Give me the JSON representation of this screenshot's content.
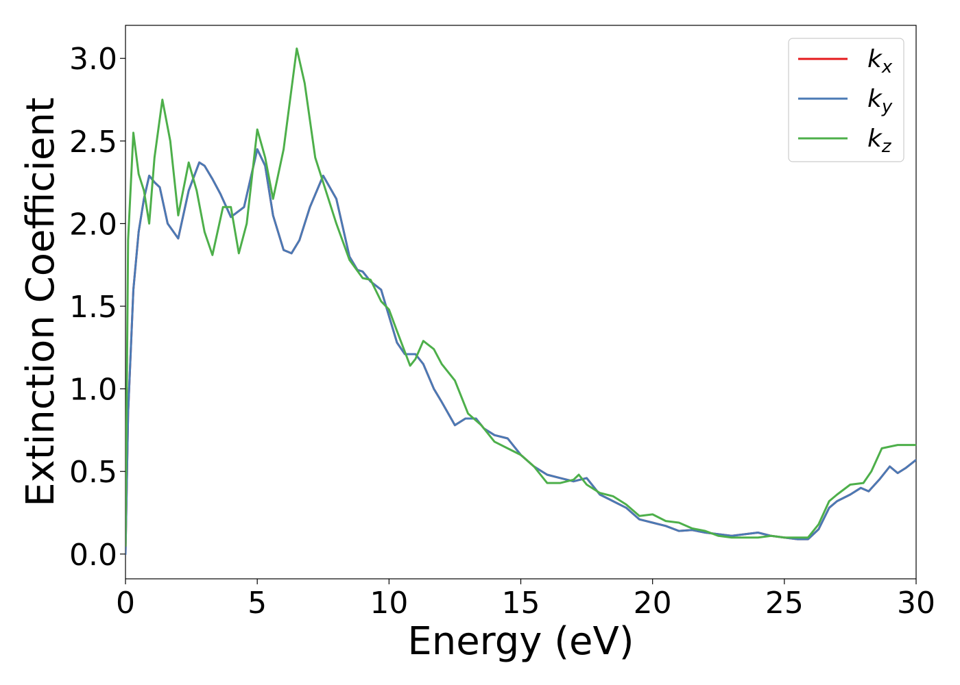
{
  "chart_data": {
    "type": "line",
    "xlabel": "Energy (eV)",
    "ylabel": "Extinction Coefficient",
    "xlim": [
      0,
      30
    ],
    "ylim": [
      -0.15,
      3.2
    ],
    "xticks": [
      0,
      5,
      10,
      15,
      20,
      25,
      30
    ],
    "xtick_labels": [
      "0",
      "5",
      "10",
      "15",
      "20",
      "25",
      "30"
    ],
    "yticks": [
      0.0,
      0.5,
      1.0,
      1.5,
      2.0,
      2.5,
      3.0
    ],
    "ytick_labels": [
      "0.0",
      "0.5",
      "1.0",
      "1.5",
      "2.0",
      "2.5",
      "3.0"
    ],
    "grid": false,
    "legend_position": "top-right",
    "series": [
      {
        "name": "k_x",
        "legend_base": "k",
        "legend_sub": "x",
        "color": "#e41a1c",
        "x": [
          0,
          0.1,
          0.3,
          0.5,
          0.7,
          0.9,
          1.1,
          1.3,
          1.6,
          2.0,
          2.4,
          2.8,
          3.0,
          3.3,
          3.6,
          4.0,
          4.5,
          5.0,
          5.3,
          5.6,
          6.0,
          6.3,
          6.6,
          7.0,
          7.5,
          8.0,
          8.5,
          8.8,
          9.0,
          9.3,
          9.7,
          10.0,
          10.3,
          10.6,
          11.0,
          11.3,
          11.7,
          12.0,
          12.5,
          12.9,
          13.3,
          13.6,
          14.0,
          14.5,
          15.0,
          15.5,
          16.0,
          16.5,
          17.0,
          17.5,
          18.0,
          18.5,
          19.0,
          19.5,
          20.0,
          20.5,
          21.0,
          21.5,
          22.0,
          22.5,
          23.0,
          23.5,
          24.0,
          24.5,
          25.0,
          25.5,
          25.9,
          26.3,
          26.7,
          27.0,
          27.5,
          27.9,
          28.2,
          28.6,
          29.0,
          29.3,
          29.6,
          30.0
        ],
        "y": [
          0.0,
          0.85,
          1.6,
          1.95,
          2.15,
          2.29,
          2.25,
          2.22,
          2.0,
          1.91,
          2.2,
          2.37,
          2.35,
          2.27,
          2.18,
          2.04,
          2.1,
          2.45,
          2.35,
          2.05,
          1.84,
          1.82,
          1.9,
          2.1,
          2.29,
          2.15,
          1.8,
          1.72,
          1.71,
          1.65,
          1.6,
          1.44,
          1.28,
          1.21,
          1.21,
          1.15,
          1.0,
          0.92,
          0.78,
          0.82,
          0.82,
          0.76,
          0.72,
          0.7,
          0.6,
          0.53,
          0.48,
          0.46,
          0.44,
          0.46,
          0.36,
          0.32,
          0.28,
          0.21,
          0.19,
          0.17,
          0.14,
          0.145,
          0.13,
          0.12,
          0.11,
          0.12,
          0.13,
          0.11,
          0.1,
          0.09,
          0.09,
          0.15,
          0.28,
          0.32,
          0.36,
          0.4,
          0.38,
          0.45,
          0.53,
          0.49,
          0.52,
          0.57
        ]
      },
      {
        "name": "k_y",
        "legend_base": "k",
        "legend_sub": "y",
        "color": "#4a7ab5",
        "x": [
          0,
          0.1,
          0.3,
          0.5,
          0.7,
          0.9,
          1.1,
          1.3,
          1.6,
          2.0,
          2.4,
          2.8,
          3.0,
          3.3,
          3.6,
          4.0,
          4.5,
          5.0,
          5.3,
          5.6,
          6.0,
          6.3,
          6.6,
          7.0,
          7.5,
          8.0,
          8.5,
          8.8,
          9.0,
          9.3,
          9.7,
          10.0,
          10.3,
          10.6,
          11.0,
          11.3,
          11.7,
          12.0,
          12.5,
          12.9,
          13.3,
          13.6,
          14.0,
          14.5,
          15.0,
          15.5,
          16.0,
          16.5,
          17.0,
          17.5,
          18.0,
          18.5,
          19.0,
          19.5,
          20.0,
          20.5,
          21.0,
          21.5,
          22.0,
          22.5,
          23.0,
          23.5,
          24.0,
          24.5,
          25.0,
          25.5,
          25.9,
          26.3,
          26.7,
          27.0,
          27.5,
          27.9,
          28.2,
          28.6,
          29.0,
          29.3,
          29.6,
          30.0
        ],
        "y": [
          0.0,
          0.85,
          1.6,
          1.95,
          2.15,
          2.29,
          2.25,
          2.22,
          2.0,
          1.91,
          2.2,
          2.37,
          2.35,
          2.27,
          2.18,
          2.04,
          2.1,
          2.45,
          2.35,
          2.05,
          1.84,
          1.82,
          1.9,
          2.1,
          2.29,
          2.15,
          1.8,
          1.72,
          1.71,
          1.65,
          1.6,
          1.44,
          1.28,
          1.21,
          1.21,
          1.15,
          1.0,
          0.92,
          0.78,
          0.82,
          0.82,
          0.76,
          0.72,
          0.7,
          0.6,
          0.53,
          0.48,
          0.46,
          0.44,
          0.46,
          0.36,
          0.32,
          0.28,
          0.21,
          0.19,
          0.17,
          0.14,
          0.145,
          0.13,
          0.12,
          0.11,
          0.12,
          0.13,
          0.11,
          0.1,
          0.09,
          0.09,
          0.15,
          0.28,
          0.32,
          0.36,
          0.4,
          0.38,
          0.45,
          0.53,
          0.49,
          0.52,
          0.57
        ]
      },
      {
        "name": "k_z",
        "legend_base": "k",
        "legend_sub": "z",
        "color": "#4daf4a",
        "x": [
          0,
          0.1,
          0.3,
          0.5,
          0.7,
          0.9,
          1.1,
          1.4,
          1.7,
          2.0,
          2.4,
          2.7,
          3.0,
          3.3,
          3.7,
          4.0,
          4.3,
          4.6,
          5.0,
          5.3,
          5.6,
          6.0,
          6.5,
          6.8,
          7.2,
          7.6,
          8.0,
          8.5,
          9.0,
          9.3,
          9.7,
          10.0,
          10.3,
          10.8,
          11.0,
          11.3,
          11.7,
          12.0,
          12.5,
          13.0,
          13.5,
          14.0,
          14.5,
          15.0,
          15.5,
          16.0,
          16.5,
          17.0,
          17.2,
          17.5,
          18.0,
          18.5,
          19.0,
          19.5,
          20.0,
          20.5,
          21.0,
          21.5,
          22.0,
          22.5,
          23.0,
          23.5,
          24.0,
          24.5,
          25.0,
          25.5,
          25.9,
          26.3,
          26.7,
          27.0,
          27.5,
          28.0,
          28.3,
          28.7,
          29.0,
          29.3,
          29.6,
          30.0
        ],
        "y": [
          0.05,
          1.9,
          2.55,
          2.3,
          2.2,
          2.0,
          2.4,
          2.75,
          2.5,
          2.05,
          2.37,
          2.2,
          1.95,
          1.81,
          2.1,
          2.1,
          1.82,
          2.0,
          2.57,
          2.4,
          2.15,
          2.45,
          3.06,
          2.85,
          2.4,
          2.2,
          2.0,
          1.78,
          1.67,
          1.66,
          1.53,
          1.48,
          1.35,
          1.14,
          1.18,
          1.29,
          1.24,
          1.15,
          1.05,
          0.85,
          0.78,
          0.68,
          0.64,
          0.6,
          0.53,
          0.43,
          0.43,
          0.45,
          0.48,
          0.42,
          0.37,
          0.35,
          0.3,
          0.23,
          0.24,
          0.2,
          0.19,
          0.155,
          0.14,
          0.11,
          0.1,
          0.1,
          0.1,
          0.11,
          0.1,
          0.1,
          0.1,
          0.18,
          0.32,
          0.36,
          0.42,
          0.43,
          0.5,
          0.64,
          0.65,
          0.66,
          0.66,
          0.66
        ]
      }
    ]
  }
}
